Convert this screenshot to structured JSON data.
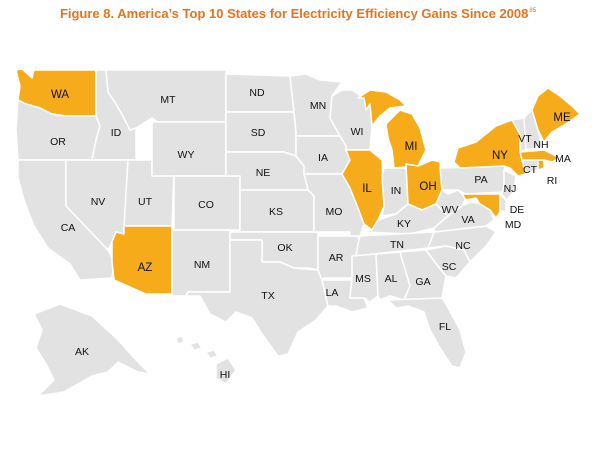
{
  "title": {
    "text": "Figure 8. America’s Top 10 States for Electricity Efficiency Gains Since 2008",
    "footnote": "85"
  },
  "colors": {
    "highlight": "#f6ab1a",
    "default": "#e2e2e3",
    "border": "#ffffff",
    "title": "#e8731f"
  },
  "highlighted_states": [
    "WA",
    "AZ",
    "MI",
    "IL",
    "OH",
    "NY",
    "MD",
    "ME",
    "MA",
    "RI"
  ],
  "states": {
    "WA": "WA",
    "OR": "OR",
    "CA": "CA",
    "ID": "ID",
    "NV": "NV",
    "UT": "UT",
    "AZ": "AZ",
    "MT": "MT",
    "WY": "WY",
    "CO": "CO",
    "NM": "NM",
    "ND": "ND",
    "SD": "SD",
    "NE": "NE",
    "KS": "KS",
    "OK": "OK",
    "TX": "TX",
    "MN": "MN",
    "IA": "IA",
    "MO": "MO",
    "AR": "AR",
    "LA": "LA",
    "WI": "WI",
    "IL": "IL",
    "MI": "MI",
    "IN": "IN",
    "OH": "OH",
    "KY": "KY",
    "TN": "TN",
    "MS": "MS",
    "AL": "AL",
    "GA": "GA",
    "FL": "FL",
    "SC": "SC",
    "NC": "NC",
    "VA": "VA",
    "WV": "WV",
    "PA": "PA",
    "NY": "NY",
    "NJ": "NJ",
    "DE": "DE",
    "MD": "MD",
    "CT": "CT",
    "RI": "RI",
    "MA": "MA",
    "VT": "VT",
    "NH": "NH",
    "ME": "ME",
    "AK": "AK",
    "HI": "HI"
  }
}
